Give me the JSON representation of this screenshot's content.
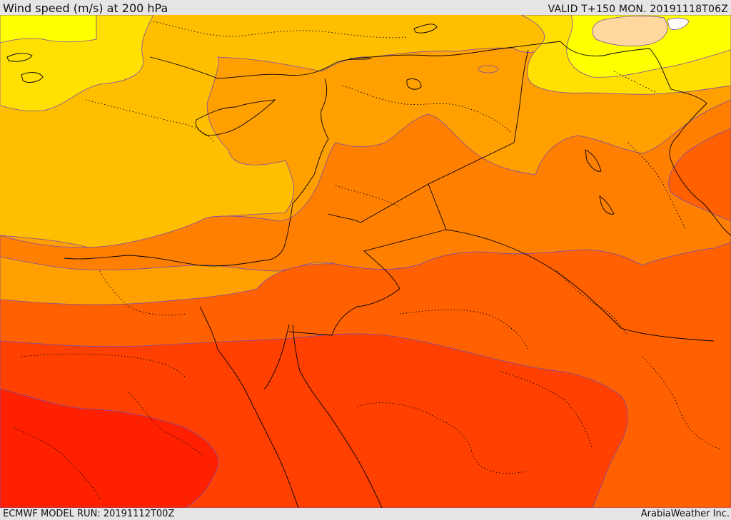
{
  "header": {
    "title": "Wind speed (m/s) at 200 hPa",
    "valid": "VALID T+150 MON. 20191118T06Z"
  },
  "footer": {
    "model_run": "ECMWF MODEL RUN: 20191112T00Z",
    "credit": "ArabiaWeather Inc."
  },
  "map": {
    "field": "wind speed",
    "level": "200 hPa",
    "colors": {
      "calm": "#ffffff",
      "light": "#ffd8a0",
      "yellow": "#ffff00",
      "gold": "#ffe000",
      "amber": "#ffbf00",
      "light_orange": "#ff9f00",
      "orange": "#ff7f00",
      "dark_orange": "#ff6000",
      "red_orange": "#ff4000",
      "red": "#ff2000"
    },
    "contour_color": "#7a4aa8",
    "boundary_style": "solid black coastlines and borders, dotted internal boundaries"
  }
}
